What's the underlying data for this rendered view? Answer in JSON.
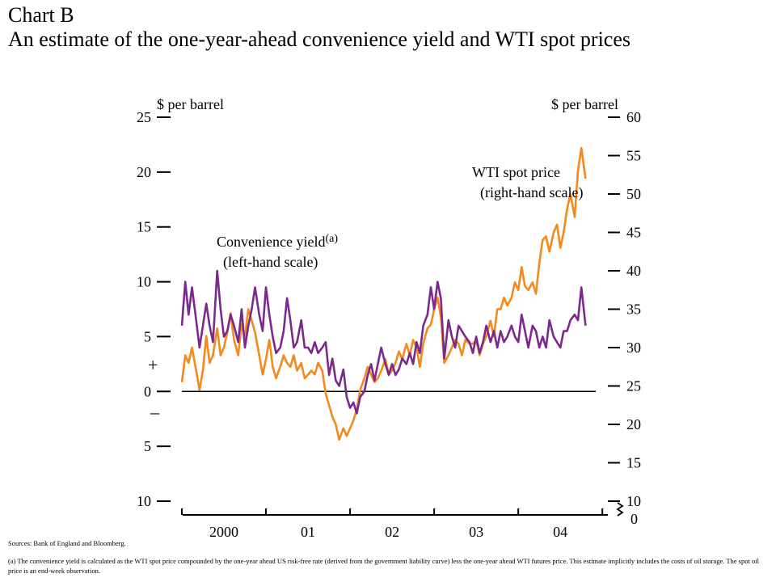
{
  "header": {
    "chart_label": "Chart B",
    "title": "An estimate of the one-year-ahead convenience yield and WTI spot prices"
  },
  "sources": "Sources: Bank of England and Bloomberg.",
  "footnote": "(a) The convenience yield is calculated as the WTI spot price compounded by the one-year ahead US risk-free rate (derived from the government liability curve) less the one-year ahead WTI futures price. This estimate implicitly includes the costs of oil storage. The spot oil price is an end-week observation.",
  "colors": {
    "convenience": "#7b2a8c",
    "wti": "#f28a1e",
    "axis": "#000000"
  },
  "chart_data": {
    "type": "line",
    "left_axis": {
      "unit_label": "$ per barrel",
      "range": [
        -10,
        25
      ],
      "ticks": [
        -10,
        -5,
        0,
        5,
        10,
        15,
        20,
        25
      ],
      "tick_labels": [
        "10",
        "5",
        "0",
        "5",
        "10",
        "15",
        "20",
        "25"
      ],
      "sign_labels": [
        "+",
        "–"
      ]
    },
    "right_axis": {
      "unit_label": "$ per barrel",
      "range": [
        10,
        60
      ],
      "ticks": [
        10,
        15,
        20,
        25,
        30,
        35,
        40,
        45,
        50,
        55,
        60
      ],
      "tick_labels": [
        "10",
        "15",
        "20",
        "25",
        "30",
        "35",
        "40",
        "45",
        "50",
        "55",
        "60"
      ],
      "break_label": "0"
    },
    "x_axis": {
      "range": [
        2000.0,
        2004.95
      ],
      "period_labels": [
        "2000",
        "01",
        "02",
        "03",
        "04"
      ]
    },
    "series": [
      {
        "name": "Convenience yield",
        "label_line1": "Convenience yield",
        "label_sup": "(a)",
        "label_line2": "(left-hand scale)",
        "axis": "left",
        "x": [
          2000.0,
          2000.04,
          2000.08,
          2000.12,
          2000.17,
          2000.21,
          2000.25,
          2000.29,
          2000.33,
          2000.37,
          2000.42,
          2000.46,
          2000.5,
          2000.54,
          2000.58,
          2000.62,
          2000.67,
          2000.71,
          2000.75,
          2000.79,
          2000.83,
          2000.87,
          2000.92,
          2000.96,
          2001.0,
          2001.04,
          2001.08,
          2001.12,
          2001.17,
          2001.21,
          2001.25,
          2001.29,
          2001.33,
          2001.37,
          2001.42,
          2001.46,
          2001.5,
          2001.54,
          2001.58,
          2001.62,
          2001.67,
          2001.71,
          2001.75,
          2001.79,
          2001.83,
          2001.87,
          2001.92,
          2001.96,
          2002.0,
          2002.04,
          2002.08,
          2002.12,
          2002.17,
          2002.21,
          2002.25,
          2002.29,
          2002.33,
          2002.37,
          2002.42,
          2002.46,
          2002.5,
          2002.54,
          2002.58,
          2002.62,
          2002.67,
          2002.71,
          2002.75,
          2002.79,
          2002.83,
          2002.87,
          2002.92,
          2002.96,
          2003.0,
          2003.04,
          2003.08,
          2003.12,
          2003.17,
          2003.21,
          2003.25,
          2003.29,
          2003.33,
          2003.37,
          2003.42,
          2003.46,
          2003.5,
          2003.54,
          2003.58,
          2003.62,
          2003.67,
          2003.71,
          2003.75,
          2003.79,
          2003.83,
          2003.87,
          2003.92,
          2003.96,
          2004.0,
          2004.04,
          2004.08,
          2004.12,
          2004.17,
          2004.21,
          2004.25,
          2004.29,
          2004.33,
          2004.37,
          2004.42,
          2004.46,
          2004.5,
          2004.54,
          2004.58,
          2004.62,
          2004.67,
          2004.71,
          2004.75,
          2004.8
        ],
        "values": [
          6.0,
          10.0,
          7.0,
          9.5,
          6.5,
          4.0,
          6.0,
          8.0,
          6.0,
          4.5,
          11.0,
          7.5,
          5.0,
          5.5,
          7.0,
          6.0,
          4.5,
          7.5,
          4.0,
          6.0,
          7.5,
          9.5,
          7.0,
          5.5,
          9.5,
          7.0,
          5.0,
          3.5,
          4.0,
          5.5,
          8.5,
          6.5,
          4.0,
          4.5,
          6.5,
          4.0,
          4.0,
          3.5,
          4.5,
          3.5,
          4.0,
          4.5,
          1.5,
          3.0,
          1.0,
          0.5,
          2.0,
          -0.5,
          -1.5,
          -1.0,
          -2.0,
          -0.5,
          0.0,
          1.5,
          2.5,
          1.0,
          2.5,
          4.0,
          2.5,
          1.5,
          2.5,
          1.5,
          2.0,
          3.0,
          2.5,
          3.5,
          2.5,
          4.5,
          3.5,
          6.0,
          7.0,
          9.5,
          7.5,
          10.0,
          8.5,
          3.0,
          6.5,
          5.0,
          4.0,
          6.0,
          5.5,
          5.0,
          4.5,
          3.5,
          5.0,
          3.5,
          4.5,
          6.0,
          4.5,
          5.5,
          4.0,
          5.5,
          4.5,
          5.0,
          6.0,
          5.0,
          4.5,
          7.0,
          5.5,
          4.0,
          6.0,
          5.5,
          4.0,
          5.0,
          4.0,
          6.5,
          5.0,
          4.5,
          4.0,
          5.5,
          5.5,
          6.5,
          7.0,
          6.5,
          9.5,
          6.0
        ]
      },
      {
        "name": "WTI spot price",
        "label_line1": "WTI spot price",
        "label_line2": "(right-hand scale)",
        "axis": "right",
        "x": [
          2000.0,
          2000.04,
          2000.08,
          2000.12,
          2000.17,
          2000.21,
          2000.25,
          2000.29,
          2000.33,
          2000.37,
          2000.42,
          2000.46,
          2000.5,
          2000.54,
          2000.58,
          2000.62,
          2000.67,
          2000.71,
          2000.75,
          2000.79,
          2000.83,
          2000.87,
          2000.92,
          2000.96,
          2001.0,
          2001.04,
          2001.08,
          2001.12,
          2001.17,
          2001.21,
          2001.25,
          2001.29,
          2001.33,
          2001.37,
          2001.42,
          2001.46,
          2001.5,
          2001.54,
          2001.58,
          2001.62,
          2001.67,
          2001.71,
          2001.75,
          2001.79,
          2001.83,
          2001.87,
          2001.92,
          2001.96,
          2002.0,
          2002.04,
          2002.08,
          2002.12,
          2002.17,
          2002.21,
          2002.25,
          2002.29,
          2002.33,
          2002.37,
          2002.42,
          2002.46,
          2002.5,
          2002.54,
          2002.58,
          2002.62,
          2002.67,
          2002.71,
          2002.75,
          2002.79,
          2002.83,
          2002.87,
          2002.92,
          2002.96,
          2003.0,
          2003.04,
          2003.08,
          2003.12,
          2003.17,
          2003.21,
          2003.25,
          2003.29,
          2003.33,
          2003.37,
          2003.42,
          2003.46,
          2003.5,
          2003.54,
          2003.58,
          2003.62,
          2003.67,
          2003.71,
          2003.75,
          2003.79,
          2003.83,
          2003.87,
          2003.92,
          2003.96,
          2004.0,
          2004.04,
          2004.08,
          2004.12,
          2004.17,
          2004.21,
          2004.25,
          2004.29,
          2004.33,
          2004.37,
          2004.42,
          2004.46,
          2004.5,
          2004.54,
          2004.58,
          2004.62,
          2004.67,
          2004.71,
          2004.75,
          2004.8
        ],
        "values": [
          25.5,
          29.0,
          28.0,
          30.0,
          27.0,
          24.5,
          27.0,
          31.5,
          28.0,
          29.0,
          32.5,
          29.0,
          30.0,
          32.0,
          34.5,
          31.0,
          29.0,
          33.0,
          31.5,
          35.0,
          33.5,
          32.0,
          29.0,
          26.5,
          28.5,
          31.0,
          27.5,
          26.0,
          27.5,
          29.0,
          28.0,
          27.5,
          29.0,
          27.0,
          28.0,
          26.0,
          26.5,
          27.0,
          26.5,
          28.0,
          27.0,
          24.0,
          22.5,
          21.0,
          20.0,
          18.0,
          19.5,
          18.5,
          19.5,
          20.5,
          22.0,
          24.5,
          26.0,
          27.5,
          26.5,
          25.5,
          26.0,
          27.0,
          28.5,
          26.5,
          27.0,
          28.0,
          29.5,
          28.5,
          30.5,
          29.0,
          31.0,
          30.0,
          27.5,
          30.5,
          32.5,
          33.0,
          35.0,
          36.5,
          34.0,
          28.0,
          29.0,
          30.0,
          31.0,
          30.5,
          29.0,
          31.0,
          30.5,
          30.5,
          31.0,
          29.0,
          30.5,
          31.5,
          33.5,
          31.5,
          35.0,
          35.0,
          36.5,
          35.5,
          36.5,
          38.5,
          37.5,
          40.5,
          38.0,
          37.5,
          38.5,
          37.0,
          41.0,
          44.0,
          44.5,
          42.5,
          45.0,
          46.0,
          43.0,
          45.0,
          48.0,
          50.0,
          47.0,
          53.0,
          56.0,
          52.0
        ]
      }
    ],
    "grid": false,
    "zero_line": true
  }
}
